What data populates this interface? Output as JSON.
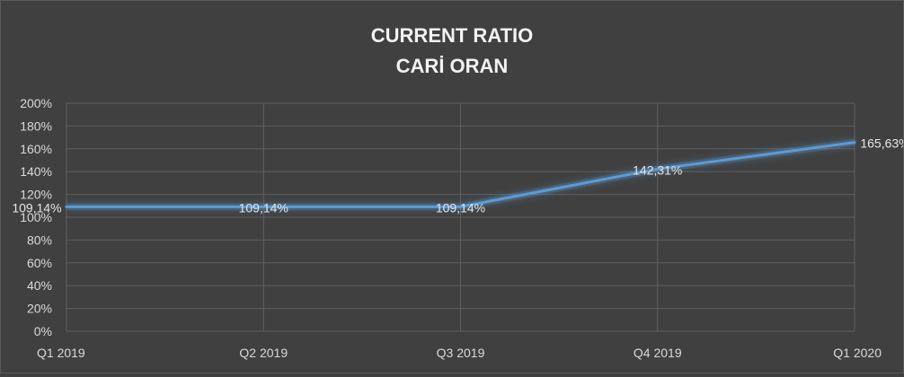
{
  "chart_data": {
    "type": "line",
    "title": "CURRENT RATIO",
    "subtitle": "CARİ ORAN",
    "xlabel": "",
    "ylabel": "",
    "categories": [
      "Q1 2019",
      "Q2 2019",
      "Q3 2019",
      "Q4 2019",
      "Q1 2020"
    ],
    "series": [
      {
        "values": [
          109.14,
          109.14,
          109.14,
          142.31,
          165.63
        ],
        "labels": [
          "109,14%",
          "109,14%",
          "109,14%",
          "142,31%",
          "165,63%"
        ],
        "color": "#5b9bd5"
      }
    ],
    "yticks": [
      "0%",
      "20%",
      "40%",
      "60%",
      "80%",
      "100%",
      "120%",
      "140%",
      "160%",
      "180%",
      "200%"
    ],
    "ylim": [
      0,
      200
    ],
    "grid": true,
    "legend": "none",
    "colors": {
      "background": "#404040",
      "gridline": "#5f5f5f",
      "line": "#5b9bd5",
      "text": "#d9d9d9"
    }
  }
}
